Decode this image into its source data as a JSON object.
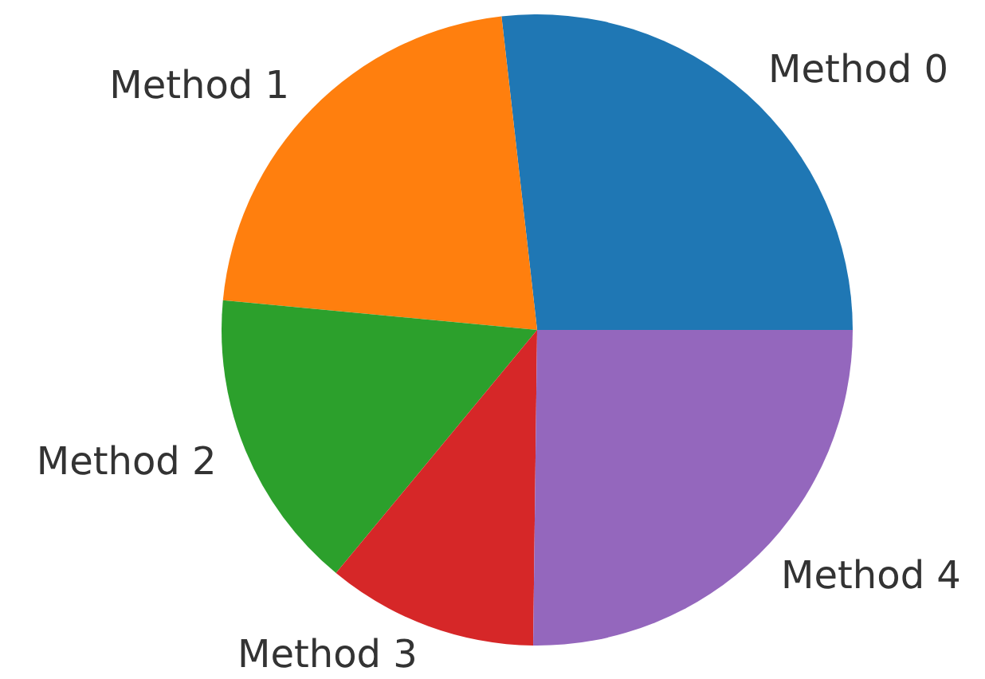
{
  "chart_data": {
    "type": "pie",
    "categories": [
      "Method 0",
      "Method 1",
      "Method 2",
      "Method 3",
      "Method 4"
    ],
    "values": [
      26.8,
      21.7,
      15.5,
      10.8,
      25.2
    ],
    "colors": [
      "#1f77b4",
      "#ff7f0e",
      "#2ca02c",
      "#d62728",
      "#9467bd"
    ]
  }
}
